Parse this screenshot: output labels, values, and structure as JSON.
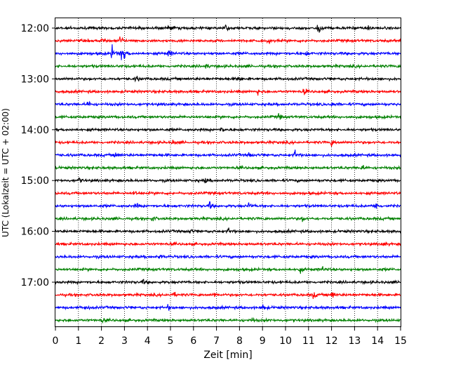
{
  "chart_data": {
    "type": "line",
    "title": "",
    "xlabel": "Zeit  [min]",
    "ylabel": "UTC (Lokalzeit = UTC + 02:00)",
    "xlim": [
      0,
      15
    ],
    "x_ticks": [
      "0",
      "1",
      "2",
      "3",
      "4",
      "5",
      "6",
      "7",
      "8",
      "9",
      "10",
      "11",
      "12",
      "13",
      "14",
      "15"
    ],
    "y_ticks": [
      "12:00",
      "13:00",
      "14:00",
      "15:00",
      "16:00",
      "17:00"
    ],
    "grid": "vertical dotted",
    "colors": [
      "#000000",
      "#ff0000",
      "#0000ff",
      "#008000"
    ],
    "trace_interval_min": 15,
    "traces": [
      {
        "start": "12:00",
        "color": "#000000",
        "events": [
          [
            11.4,
            3.2
          ],
          [
            4.9,
            1.3
          ],
          [
            7.4,
            1.2
          ],
          [
            13.6,
            1.1
          ]
        ]
      },
      {
        "start": "12:15",
        "color": "#ff0000",
        "events": [
          [
            2.8,
            2.2
          ],
          [
            2.0,
            1.3
          ],
          [
            9.2,
            1.1
          ]
        ]
      },
      {
        "start": "12:30",
        "color": "#0000ff",
        "events": [
          [
            2.45,
            3.0
          ],
          [
            2.8,
            3.0
          ],
          [
            3.0,
            2.0
          ],
          [
            4.9,
            1.7
          ],
          [
            10.9,
            1.1
          ]
        ]
      },
      {
        "start": "12:45",
        "color": "#008000",
        "events": [
          [
            6.5,
            1.4
          ]
        ]
      },
      {
        "start": "13:00",
        "color": "#000000",
        "events": [
          [
            3.5,
            1.3
          ],
          [
            7.9,
            1.1
          ]
        ]
      },
      {
        "start": "13:15",
        "color": "#ff0000",
        "events": [
          [
            10.8,
            1.4
          ],
          [
            8.8,
            1.1
          ]
        ]
      },
      {
        "start": "13:30",
        "color": "#0000ff",
        "events": [
          [
            1.4,
            1.3
          ],
          [
            12.0,
            1.1
          ]
        ]
      },
      {
        "start": "13:45",
        "color": "#008000",
        "events": [
          [
            9.7,
            1.1
          ]
        ]
      },
      {
        "start": "14:00",
        "color": "#000000",
        "events": [
          [
            7.2,
            1.1
          ]
        ]
      },
      {
        "start": "14:15",
        "color": "#ff0000",
        "events": [
          [
            12.0,
            1.7
          ],
          [
            5.1,
            1.1
          ]
        ]
      },
      {
        "start": "14:30",
        "color": "#0000ff",
        "events": [
          [
            10.4,
            1.9
          ],
          [
            2.6,
            1.3
          ],
          [
            8.4,
            1.1
          ]
        ]
      },
      {
        "start": "14:45",
        "color": "#008000",
        "events": [
          [
            13.3,
            1.1
          ]
        ]
      },
      {
        "start": "15:00",
        "color": "#000000",
        "events": [
          [
            1.0,
            1.3
          ],
          [
            6.5,
            1.0
          ]
        ]
      },
      {
        "start": "15:15",
        "color": "#ff0000",
        "events": [
          [
            3.4,
            1.0
          ]
        ]
      },
      {
        "start": "15:30",
        "color": "#0000ff",
        "events": [
          [
            13.9,
            2.2
          ],
          [
            6.7,
            1.6
          ],
          [
            8.4,
            1.1
          ],
          [
            3.5,
            1.1
          ]
        ]
      },
      {
        "start": "15:45",
        "color": "#008000",
        "events": [
          [
            10.7,
            1.4
          ],
          [
            4.2,
            1.0
          ]
        ]
      },
      {
        "start": "16:00",
        "color": "#000000",
        "events": [
          [
            7.5,
            1.3
          ],
          [
            5.8,
            1.1
          ]
        ]
      },
      {
        "start": "16:15",
        "color": "#ff0000",
        "events": [
          [
            14.2,
            1.1
          ]
        ]
      },
      {
        "start": "16:30",
        "color": "#0000ff",
        "events": [
          [
            4.5,
            1.0
          ]
        ]
      },
      {
        "start": "16:45",
        "color": "#008000",
        "events": [
          [
            10.6,
            1.3
          ],
          [
            11.6,
            1.1
          ]
        ]
      },
      {
        "start": "17:00",
        "color": "#000000",
        "events": [
          [
            3.8,
            1.0
          ]
        ]
      },
      {
        "start": "17:15",
        "color": "#ff0000",
        "events": [
          [
            12.0,
            1.9
          ],
          [
            11.2,
            1.4
          ],
          [
            5.1,
            1.2
          ],
          [
            6.9,
            1.1
          ]
        ]
      },
      {
        "start": "17:30",
        "color": "#0000ff",
        "events": [
          [
            9.0,
            1.4
          ],
          [
            1.3,
            1.1
          ],
          [
            4.9,
            1.1
          ]
        ]
      },
      {
        "start": "17:45",
        "color": "#008000",
        "events": [
          [
            2.0,
            1.1
          ],
          [
            8.5,
            1.0
          ]
        ]
      }
    ]
  }
}
